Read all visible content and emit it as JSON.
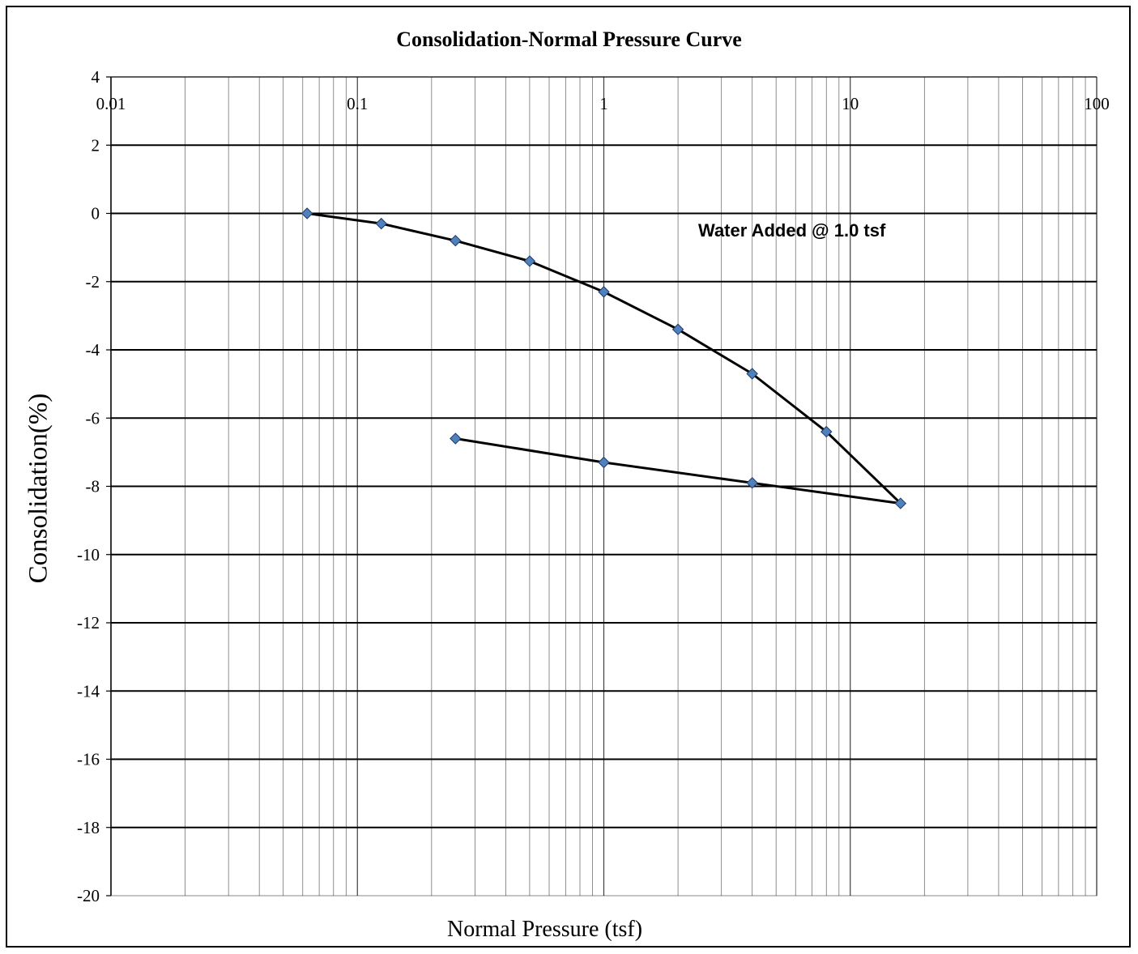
{
  "chart_data": {
    "type": "line",
    "title": "Consolidation-Normal Pressure Curve",
    "xlabel": "Normal Pressure (tsf)",
    "ylabel": "Consolidation(%)",
    "x_scale": "log",
    "xlim": [
      0.01,
      100
    ],
    "ylim": [
      -20,
      4
    ],
    "x_ticks": [
      0.01,
      0.1,
      1,
      10,
      100
    ],
    "x_tick_labels": [
      "0.01",
      "0.1",
      "1",
      "10",
      "100"
    ],
    "y_ticks": [
      4,
      2,
      0,
      -2,
      -4,
      -6,
      -8,
      -10,
      -12,
      -14,
      -16,
      -18,
      -20
    ],
    "y_tick_labels": [
      "4",
      "2",
      "0",
      "-2",
      "-4",
      "-6",
      "-8",
      "-10",
      "-12",
      "-14",
      "-16",
      "-18",
      "-20"
    ],
    "grid": true,
    "series": [
      {
        "points": [
          {
            "x": 0.0625,
            "y": 0
          },
          {
            "x": 0.125,
            "y": -0.3
          },
          {
            "x": 0.25,
            "y": -0.8
          },
          {
            "x": 0.5,
            "y": -1.4
          },
          {
            "x": 1,
            "y": -2.3
          },
          {
            "x": 2,
            "y": -3.4
          },
          {
            "x": 4,
            "y": -4.7
          },
          {
            "x": 8,
            "y": -6.4
          },
          {
            "x": 16,
            "y": -8.5
          },
          {
            "x": 4,
            "y": -7.9
          },
          {
            "x": 1,
            "y": -7.3
          },
          {
            "x": 0.25,
            "y": -6.6
          }
        ]
      }
    ],
    "annotations": [
      {
        "text": "Water Added @ 1.0 tsf"
      }
    ],
    "colors": {
      "marker_fill": "#4F81BD",
      "marker_stroke": "#1F3864",
      "line": "#000000",
      "grid": "#000000"
    }
  }
}
